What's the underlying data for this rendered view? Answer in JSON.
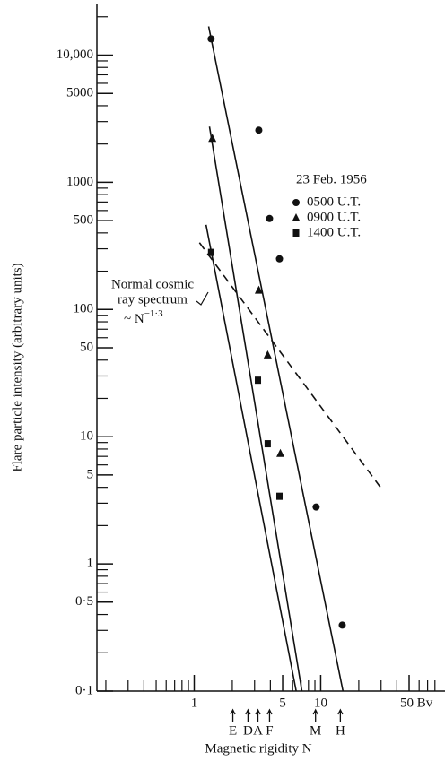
{
  "chart_data": {
    "type": "scatter",
    "log_x": true,
    "log_y": true,
    "xlabel": "Magnetic rigidity N",
    "ylabel": "Flare particle intensity (arbitrary units)",
    "xlim": [
      0.17,
      90
    ],
    "ylim": [
      0.1,
      25000
    ],
    "xticks": [
      1,
      5,
      10,
      {
        "value": 50,
        "label": "50 Bv"
      }
    ],
    "xminorticks": [
      0.2,
      0.3,
      0.4,
      0.5,
      0.6,
      0.7,
      0.8,
      0.9,
      2,
      3,
      4,
      6,
      7,
      8,
      9,
      20,
      30,
      40,
      60,
      70,
      80
    ],
    "yticks": [
      {
        "value": 0.1,
        "label": "0·1"
      },
      {
        "value": 0.5,
        "label": "0·5"
      },
      1,
      5,
      10,
      50,
      100,
      500,
      1000,
      5000,
      {
        "value": 10000,
        "label": "10,000"
      }
    ],
    "yminorticks": [
      0.2,
      0.3,
      0.4,
      0.6,
      0.7,
      0.8,
      0.9,
      2,
      3,
      4,
      6,
      7,
      8,
      9,
      20,
      30,
      40,
      60,
      70,
      80,
      90,
      200,
      300,
      400,
      600,
      700,
      800,
      900,
      2000,
      3000,
      4000,
      6000,
      7000,
      8000,
      9000,
      20000
    ],
    "legend_title": "23 Feb. 1956",
    "series": [
      {
        "name": "0500 U.T.",
        "marker": "circle",
        "color": "#111111",
        "x": [
          1.36,
          3.24,
          3.94,
          4.72,
          9.2,
          14.8
        ],
        "values": [
          13400,
          2570,
          519,
          250,
          2.8,
          0.33
        ],
        "fit": {
          "x": [
            1.3,
            15.0
          ],
          "values": [
            16800,
            0.1
          ]
        }
      },
      {
        "name": "0900 U.T.",
        "marker": "triangle",
        "color": "#111111",
        "x": [
          1.39,
          3.24,
          3.81,
          4.8
        ],
        "values": [
          2220,
          142,
          44,
          7.4
        ],
        "fit": {
          "x": [
            1.32,
            7.1
          ],
          "values": [
            2740,
            0.1
          ]
        }
      },
      {
        "name": "1400 U.T.",
        "marker": "square",
        "color": "#111111",
        "x": [
          1.36,
          3.19,
          3.81,
          4.72
        ],
        "values": [
          281,
          27.8,
          8.8,
          3.4
        ],
        "fit": {
          "x": [
            1.24,
            6.4
          ],
          "values": [
            463,
            0.1
          ]
        }
      }
    ],
    "reference_line": {
      "x": [
        1.1,
        30.4
      ],
      "values": [
        335,
        3.87
      ],
      "dashed": true
    },
    "annotation": {
      "lines": [
        "Normal cosmic",
        "ray spectrum"
      ],
      "formula": "~ N",
      "exponent": "−1·3"
    },
    "rigidity_markers": [
      {
        "label": "E",
        "x": 2.02
      },
      {
        "label": "D",
        "x": 2.66
      },
      {
        "label": "A",
        "x": 3.19
      },
      {
        "label": "F",
        "x": 3.94
      },
      {
        "label": "M",
        "x": 9.1
      },
      {
        "label": "H",
        "x": 14.3
      }
    ]
  }
}
